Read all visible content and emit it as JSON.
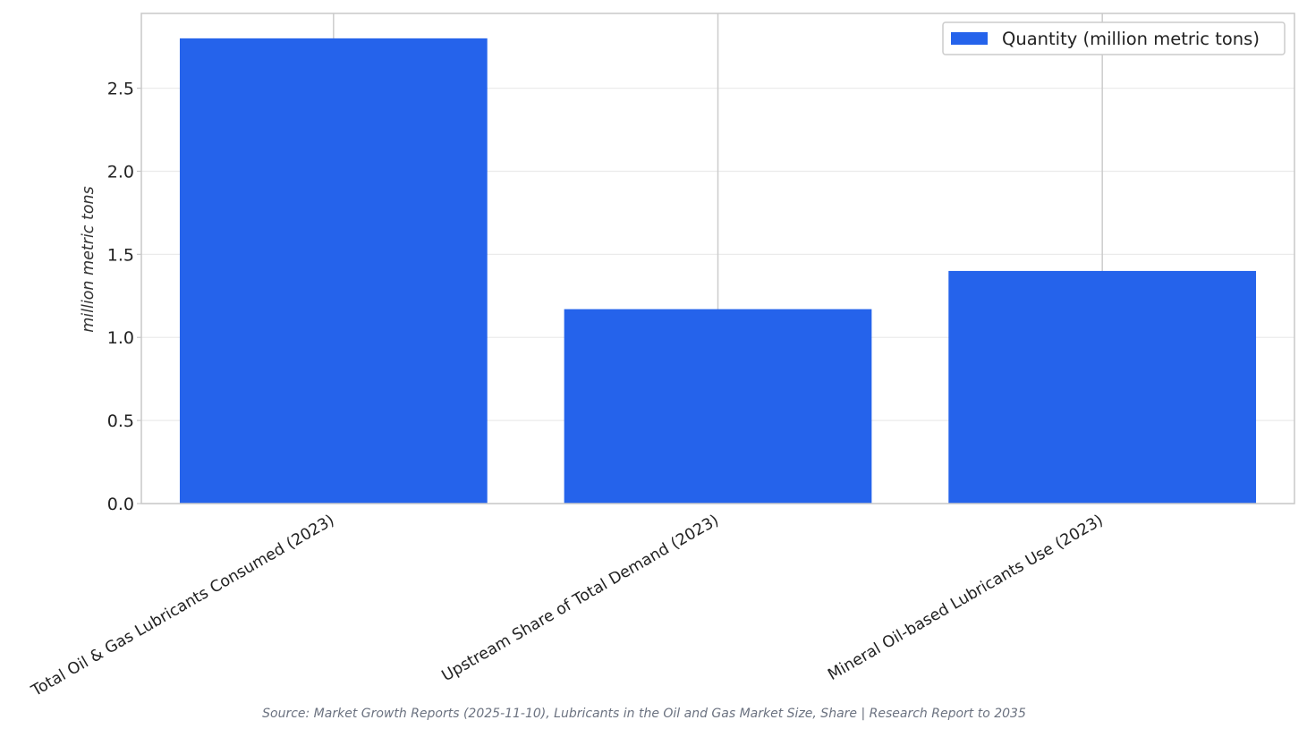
{
  "chart_data": {
    "type": "bar",
    "categories": [
      "Total Oil & Gas Lubricants Consumed (2023)",
      "Upstream Share of Total Demand (2023)",
      "Mineral Oil-based Lubricants Use (2023)"
    ],
    "series": [
      {
        "name": "Quantity (million metric tons)",
        "values": [
          2.8,
          1.17,
          1.4
        ]
      }
    ],
    "title": "",
    "xlabel": "",
    "ylabel": "million metric tons",
    "ylim": [
      0,
      2.95
    ],
    "yticks": [
      "0.0",
      "0.5",
      "1.0",
      "1.5",
      "2.0",
      "2.5"
    ],
    "grid": true,
    "legend_position": "top-right",
    "bar_color": "#2563eb"
  },
  "source": "Source: Market Growth Reports (2025-11-10), Lubricants in the Oil and Gas Market Size, Share | Research Report to 2035"
}
